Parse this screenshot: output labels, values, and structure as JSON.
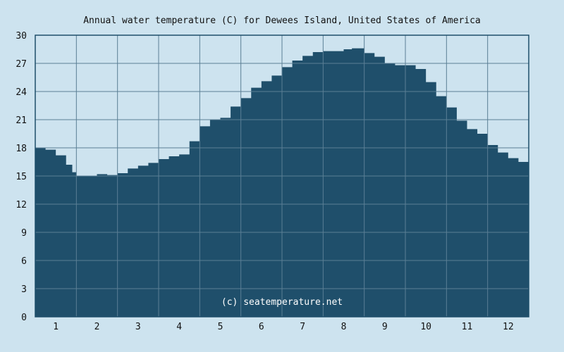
{
  "chart_data": {
    "type": "area",
    "title": "Annual water temperature (C) for Dewees Island, United States of America",
    "xlabel": "",
    "ylabel": "",
    "ylim": [
      0,
      30
    ],
    "yticks": [
      "0",
      "3",
      "6",
      "9",
      "12",
      "15",
      "18",
      "21",
      "24",
      "27",
      "30"
    ],
    "xlim": [
      0.5,
      12.5
    ],
    "xticks": [
      "1",
      "2",
      "3",
      "4",
      "5",
      "6",
      "7",
      "8",
      "9",
      "10",
      "11",
      "12"
    ],
    "grid": true,
    "watermark": "(c) seatemperature.net",
    "x": [
      0.5,
      0.75,
      1.0,
      1.25,
      1.4,
      1.5,
      1.75,
      2.0,
      2.25,
      2.5,
      2.75,
      3.0,
      3.25,
      3.5,
      3.75,
      4.0,
      4.25,
      4.5,
      4.75,
      5.0,
      5.25,
      5.5,
      5.75,
      6.0,
      6.25,
      6.5,
      6.75,
      7.0,
      7.25,
      7.5,
      7.75,
      8.0,
      8.2,
      8.5,
      8.75,
      9.0,
      9.25,
      9.5,
      9.75,
      10.0,
      10.25,
      10.5,
      10.75,
      11.0,
      11.25,
      11.5,
      11.75,
      12.0,
      12.25,
      12.5
    ],
    "y": [
      18.0,
      17.8,
      17.2,
      16.2,
      15.4,
      15.0,
      15.0,
      15.2,
      15.1,
      15.3,
      15.8,
      16.1,
      16.4,
      16.8,
      17.1,
      17.3,
      18.7,
      20.3,
      21.0,
      21.2,
      22.4,
      23.3,
      24.4,
      25.1,
      25.7,
      26.6,
      27.3,
      27.8,
      28.2,
      28.3,
      28.3,
      28.5,
      28.6,
      28.1,
      27.7,
      27.0,
      26.8,
      26.8,
      26.4,
      25.0,
      23.5,
      22.3,
      20.9,
      20.0,
      19.5,
      18.3,
      17.5,
      16.9,
      16.5,
      15.8
    ],
    "colors": {
      "background": "#cde3ef",
      "area_fill": "#1f4f6b",
      "grid": "#5b7f95",
      "axis": "#1f4f6b"
    }
  }
}
